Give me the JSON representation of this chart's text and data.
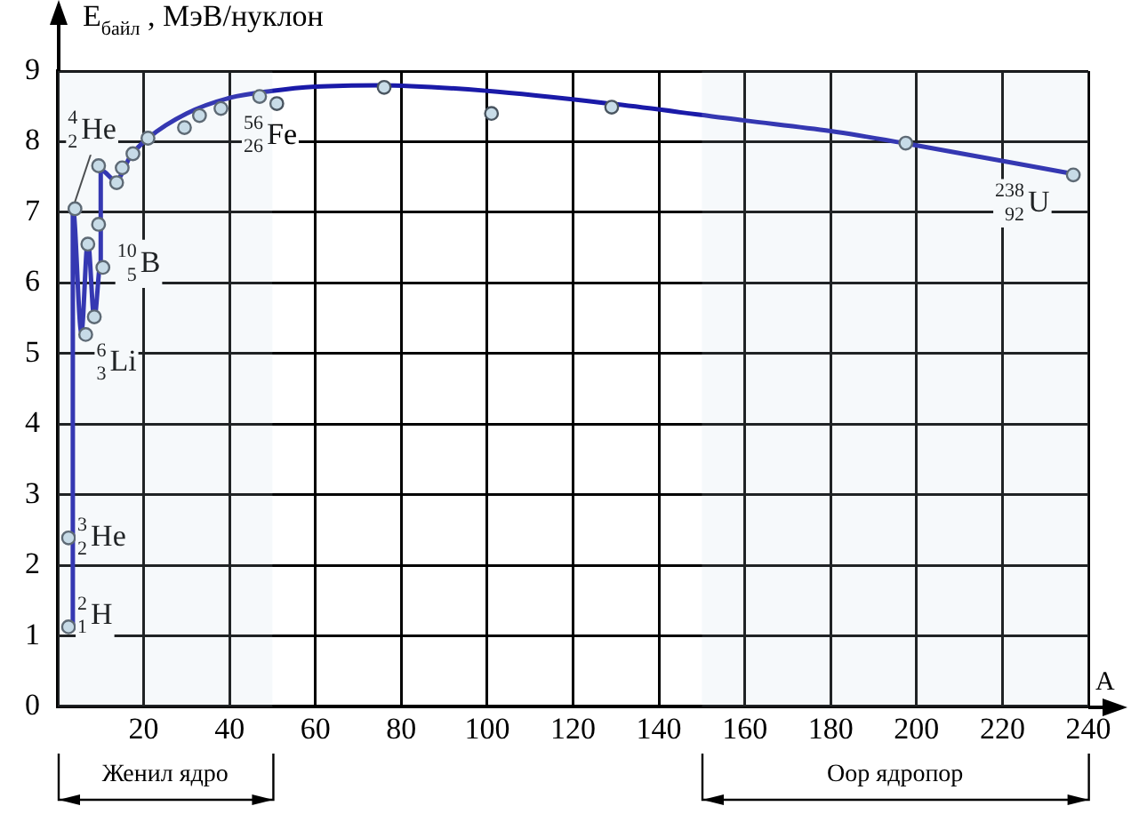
{
  "chart_data": {
    "type": "scatter",
    "ylabel": "E$_{байл}$ , МэВ/нуклон",
    "xlabel": "A",
    "xlim": [
      0,
      240
    ],
    "xticks": [
      {
        "value": 0,
        "label": null
      },
      20,
      40,
      60,
      80,
      100,
      120,
      140,
      160,
      180,
      200,
      220,
      240
    ],
    "ylim": [
      0,
      9
    ],
    "yticks": [
      0,
      1,
      2,
      3,
      4,
      5,
      6,
      7,
      8,
      9
    ],
    "grid": true,
    "legend": false,
    "marker": "circle",
    "series": [
      {
        "type": "line",
        "color": "#1a1aa8",
        "marker": "none",
        "x": [
          3.5,
          3.5,
          5.5,
          7,
          8.5,
          10,
          10,
          13.5,
          17,
          21,
          30,
          40,
          50,
          60,
          75,
          100,
          130,
          160,
          180,
          197,
          236
        ],
        "values": [
          1.1,
          7.07,
          5.3,
          6.6,
          5.5,
          6.3,
          7.6,
          7.45,
          7.8,
          8.05,
          8.4,
          8.62,
          8.72,
          8.78,
          8.8,
          8.72,
          8.53,
          8.3,
          8.15,
          7.98,
          7.55
        ]
      },
      {
        "color": "#c8dce8",
        "x": [
          2.5,
          2.5,
          4,
          6.5,
          7,
          8.5,
          9.5,
          9.5,
          10.5,
          13.7,
          15,
          17.5,
          21,
          29.5,
          33,
          38,
          47,
          51,
          76,
          101,
          129,
          197.5,
          236.5
        ],
        "values": [
          1.13,
          2.39,
          7.05,
          5.27,
          6.55,
          5.52,
          6.83,
          7.66,
          6.22,
          7.42,
          7.63,
          7.83,
          8.05,
          8.2,
          8.37,
          8.47,
          8.64,
          8.54,
          8.77,
          8.4,
          8.49,
          7.98,
          7.53
        ]
      }
    ],
    "annotations": [
      {
        "text": "$^{4}$$_{2}$He",
        "x": 4,
        "y": 7.05
      },
      {
        "text": "$^{10}$$_{5}$B",
        "x": 10.5,
        "y": 6.22
      },
      {
        "text": "$^{6}$$_{3}$Li",
        "x": 6.5,
        "y": 5.27
      },
      {
        "text": "$^{3}$$_{2}$He",
        "x": 2.5,
        "y": 2.39
      },
      {
        "text": "$^{2}$$_{1}$H",
        "x": 2.5,
        "y": 1.13
      },
      {
        "text": "$^{56}$$_{26}$Fe",
        "x": 47,
        "y": 8.64
      },
      {
        "text": "$^{238}$$_{92}$U",
        "x": 236.5,
        "y": 7.53
      }
    ],
    "bands": [
      {
        "axis": "x",
        "from": 0,
        "to": 50,
        "label": "Женил ядро"
      },
      {
        "axis": "x",
        "from": 150,
        "to": 240,
        "label": "Оор ядропор"
      }
    ]
  }
}
